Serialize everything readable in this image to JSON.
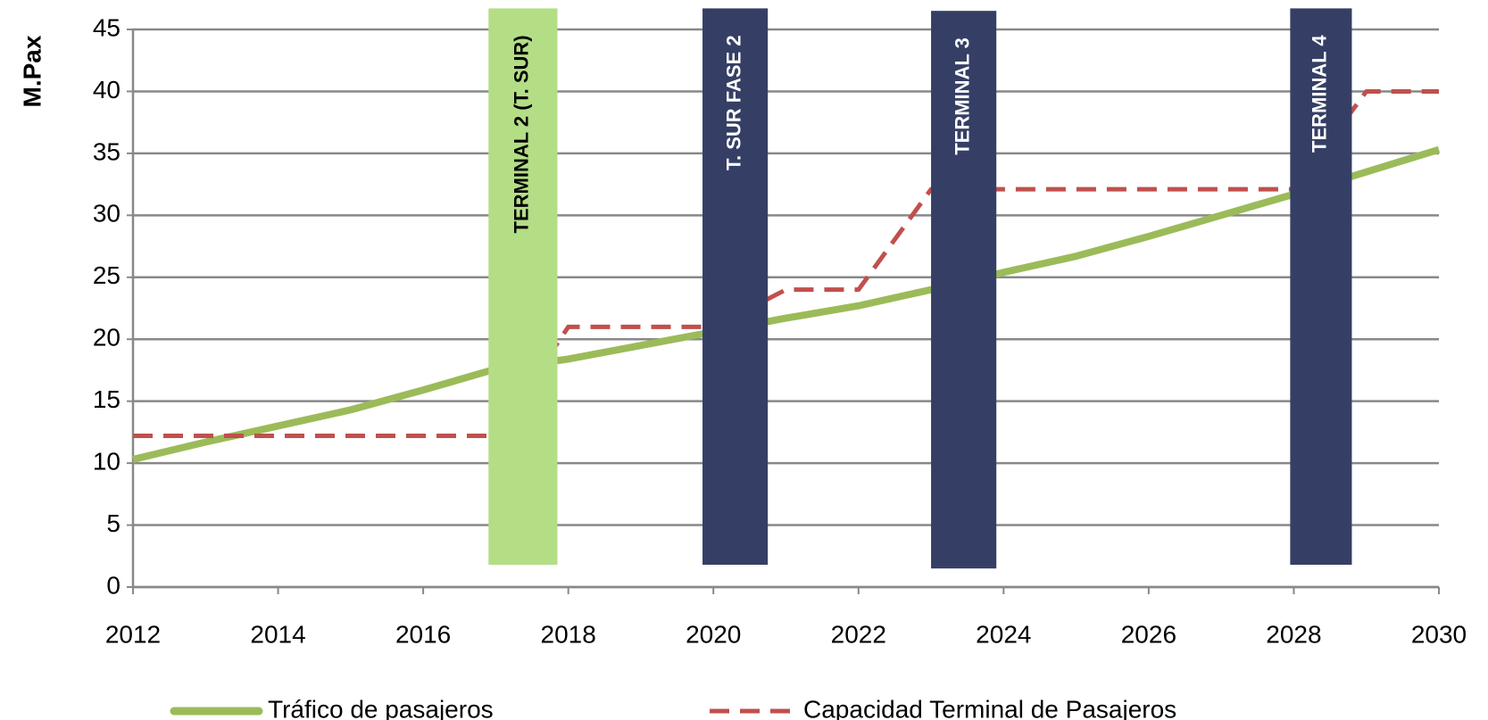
{
  "chart_data": {
    "type": "line",
    "y_label": "M.Pax",
    "x": [
      2012,
      2013,
      2014,
      2015,
      2016,
      2017,
      2018,
      2019,
      2020,
      2021,
      2022,
      2023,
      2024,
      2025,
      2026,
      2027,
      2028,
      2029,
      2030
    ],
    "series": [
      {
        "name": "Tráfico de pasajeros",
        "color": "#9bbb59",
        "style": "solid",
        "values": [
          10.3,
          11.7,
          13,
          14.3,
          15.9,
          17.6,
          18.4,
          19.5,
          20.6,
          21.7,
          22.7,
          24,
          25.4,
          26.7,
          28.3,
          30,
          31.7,
          33.5,
          35.3
        ]
      },
      {
        "name": "Capacidad Terminal de Pasajeros",
        "color": "#c0504d",
        "style": "dashed",
        "values": [
          12.2,
          12.2,
          12.2,
          12.2,
          12.2,
          12.2,
          21,
          21,
          21,
          24,
          24,
          32.1,
          32.1,
          32.1,
          32.1,
          32.1,
          32.1,
          40,
          40
        ]
      }
    ],
    "annotations": [
      {
        "label": "TERMINAL 2 (T. SUR)",
        "x": [
          2016.9,
          2017.85
        ],
        "y": [
          1.8,
          46.7
        ],
        "color": "#b3de86"
      },
      {
        "label": "T. SUR FASE 2",
        "x": [
          2019.85,
          2020.75
        ],
        "y": [
          1.8,
          46.7
        ],
        "color": "#353f66"
      },
      {
        "label": "TERMINAL 3",
        "x": [
          2023.0,
          2023.9
        ],
        "y": [
          1.5,
          46.5
        ],
        "color": "#353f66"
      },
      {
        "label": "TERMINAL 4",
        "x": [
          2027.95,
          2028.8
        ],
        "y": [
          1.8,
          46.7
        ],
        "color": "#353f66"
      }
    ],
    "xlim": [
      2012,
      2030
    ],
    "xticks": [
      2012,
      2014,
      2016,
      2018,
      2020,
      2022,
      2024,
      2026,
      2028,
      2030
    ],
    "ylim": [
      0,
      45
    ],
    "yticks": [
      0,
      5,
      10,
      15,
      20,
      25,
      30,
      35,
      40,
      45
    ],
    "grid": true,
    "legend": "bottom"
  }
}
